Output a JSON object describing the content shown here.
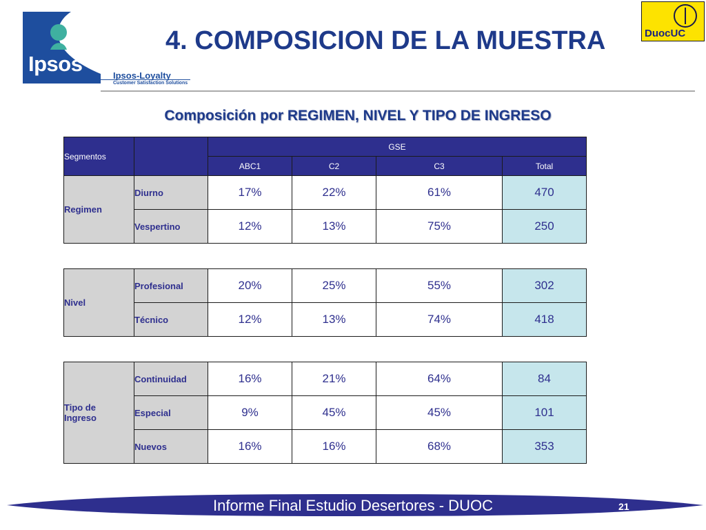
{
  "header": {
    "brand": "Ipsos",
    "sub_brand": "Ipsos-Loyalty",
    "sub_brand_tagline": "Customer Satisfaction Solutions",
    "title": "4. COMPOSICION DE LA MUESTRA",
    "partner_logo": "DuocUC"
  },
  "subtitle": "Composición por REGIMEN, NIVEL Y TIPO DE INGRESO",
  "table": {
    "segments_label": "Segmentos",
    "gse_label": "GSE",
    "columns": [
      "ABC1",
      "C2",
      "C3",
      "Total"
    ],
    "groups": [
      {
        "label": "Regimen",
        "rows": [
          {
            "label": "Diurno",
            "abc1": "17%",
            "c2": "22%",
            "c3": "61%",
            "total": "470"
          },
          {
            "label": "Vespertino",
            "abc1": "12%",
            "c2": "13%",
            "c3": "75%",
            "total": "250"
          }
        ]
      },
      {
        "label": "Nivel",
        "rows": [
          {
            "label": "Profesional",
            "abc1": "20%",
            "c2": "25%",
            "c3": "55%",
            "total": "302"
          },
          {
            "label": "Técnico",
            "abc1": "12%",
            "c2": "13%",
            "c3": "74%",
            "total": "418"
          }
        ]
      },
      {
        "label": "Tipo de Ingreso",
        "rows": [
          {
            "label": "Continuidad",
            "abc1": "16%",
            "c2": "21%",
            "c3": "64%",
            "total": "84"
          },
          {
            "label": "Especial",
            "abc1": "9%",
            "c2": "45%",
            "c3": "45%",
            "total": "101"
          },
          {
            "label": "Nuevos",
            "abc1": "16%",
            "c2": "16%",
            "c3": "68%",
            "total": "353"
          }
        ]
      }
    ]
  },
  "footer": {
    "text": "Informe Final Estudio Desertores - DUOC",
    "page": "21"
  },
  "colors": {
    "title": "#1e3a8a",
    "header_fill": "#2e2f8e",
    "label_fill": "#d3d3d3",
    "total_fill": "#c6e6ec",
    "footer_band": "#2e2f8e"
  }
}
